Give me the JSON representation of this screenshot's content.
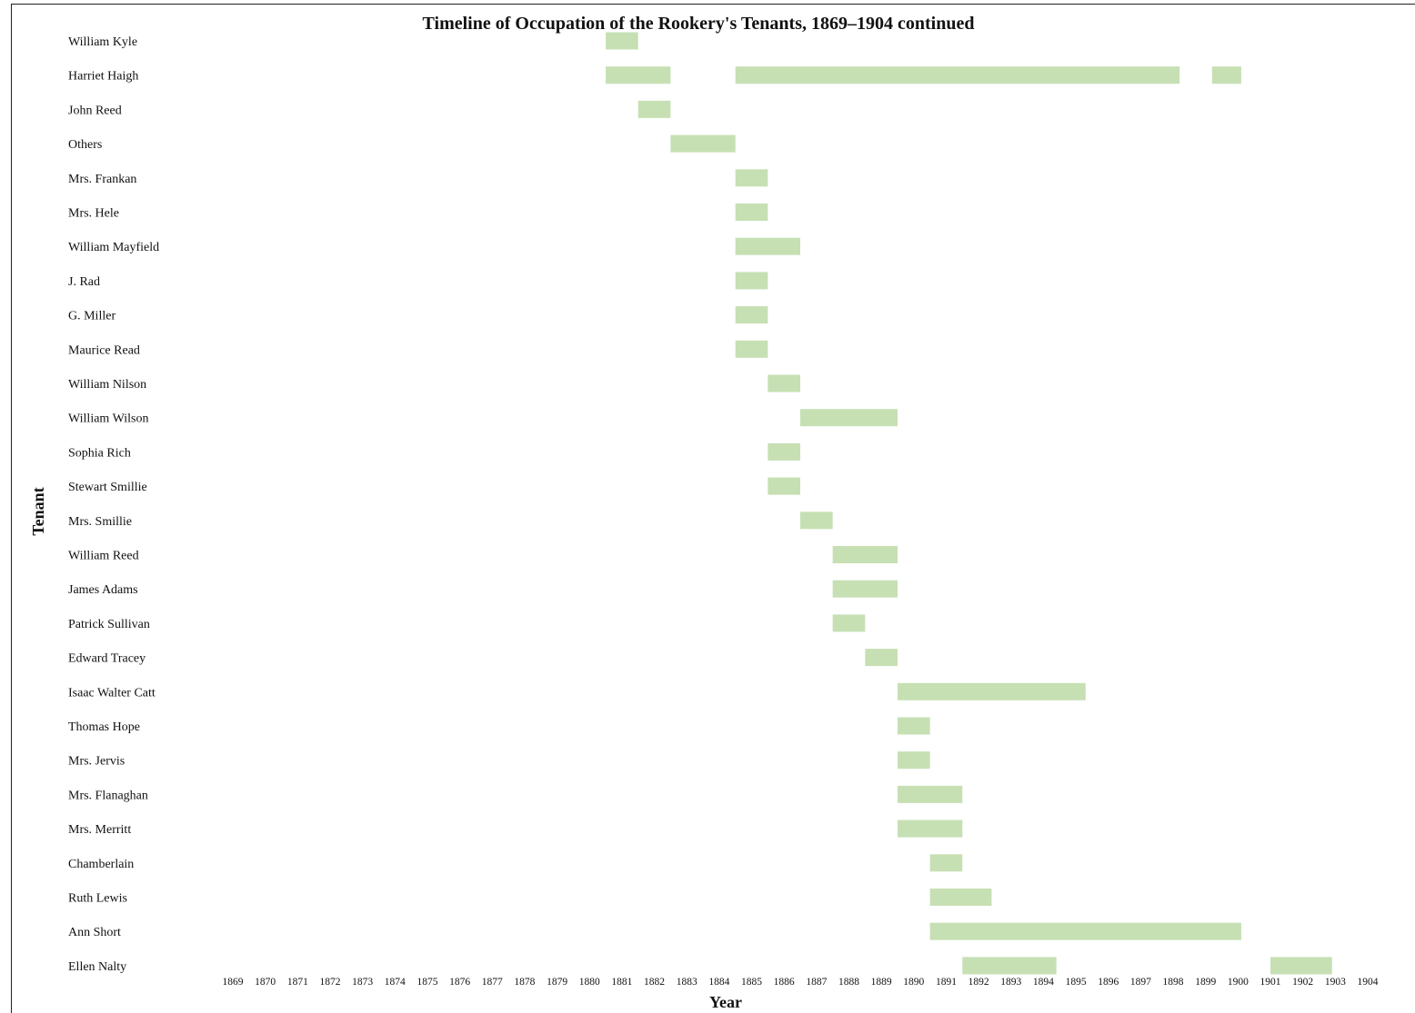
{
  "chart_data": {
    "type": "bar",
    "orientation": "horizontal-timeline",
    "title": "Timeline of Occupation of the Rookery's Tenants, 1869–1904 continued",
    "xlabel": "Year",
    "ylabel": "Tenant",
    "xlim": [
      1869,
      1904
    ],
    "x_ticks": [
      "1869",
      "1870",
      "1871",
      "1872",
      "1873",
      "1874",
      "1875",
      "1876",
      "1877",
      "1878",
      "1879",
      "1880",
      "1881",
      "1882",
      "1883",
      "1884",
      "1885",
      "1886",
      "1887",
      "1888",
      "1889",
      "1890",
      "1891",
      "1892",
      "1893",
      "1894",
      "1895",
      "1896",
      "1897",
      "1898",
      "1899",
      "1900",
      "1901",
      "1902",
      "1903",
      "1904"
    ],
    "grid": false,
    "bar_color": "#c6e0b4",
    "tenants": [
      {
        "name": "William Kyle",
        "periods": [
          [
            1880.5,
            1881.5
          ]
        ]
      },
      {
        "name": "Harriet Haigh",
        "periods": [
          [
            1880.5,
            1882.5
          ],
          [
            1884.5,
            1898.2
          ],
          [
            1899.2,
            1900.1
          ]
        ]
      },
      {
        "name": "John Reed",
        "periods": [
          [
            1881.5,
            1882.5
          ]
        ]
      },
      {
        "name": "Others",
        "periods": [
          [
            1882.5,
            1884.5
          ]
        ]
      },
      {
        "name": "Mrs. Frankan",
        "periods": [
          [
            1884.5,
            1885.5
          ]
        ]
      },
      {
        "name": "Mrs. Hele",
        "periods": [
          [
            1884.5,
            1885.5
          ]
        ]
      },
      {
        "name": "William Mayfield",
        "periods": [
          [
            1884.5,
            1886.5
          ]
        ]
      },
      {
        "name": "J. Rad",
        "periods": [
          [
            1884.5,
            1885.5
          ]
        ]
      },
      {
        "name": "G. Miller",
        "periods": [
          [
            1884.5,
            1885.5
          ]
        ]
      },
      {
        "name": "Maurice Read",
        "periods": [
          [
            1884.5,
            1885.5
          ]
        ]
      },
      {
        "name": "William Nilson",
        "periods": [
          [
            1885.5,
            1886.5
          ]
        ]
      },
      {
        "name": "William Wilson",
        "periods": [
          [
            1886.5,
            1889.5
          ]
        ]
      },
      {
        "name": "Sophia Rich",
        "periods": [
          [
            1885.5,
            1886.5
          ]
        ]
      },
      {
        "name": "Stewart Smillie",
        "periods": [
          [
            1885.5,
            1886.5
          ]
        ]
      },
      {
        "name": "Mrs. Smillie",
        "periods": [
          [
            1886.5,
            1887.5
          ]
        ]
      },
      {
        "name": "William Reed",
        "periods": [
          [
            1887.5,
            1889.5
          ]
        ]
      },
      {
        "name": "James Adams",
        "periods": [
          [
            1887.5,
            1889.5
          ]
        ]
      },
      {
        "name": "Patrick Sullivan",
        "periods": [
          [
            1887.5,
            1888.5
          ]
        ]
      },
      {
        "name": "Edward Tracey",
        "periods": [
          [
            1888.5,
            1889.5
          ]
        ]
      },
      {
        "name": "Isaac Walter Catt",
        "periods": [
          [
            1889.5,
            1895.3
          ]
        ]
      },
      {
        "name": "Thomas Hope",
        "periods": [
          [
            1889.5,
            1890.5
          ]
        ]
      },
      {
        "name": "Mrs. Jervis",
        "periods": [
          [
            1889.5,
            1890.5
          ]
        ]
      },
      {
        "name": "Mrs. Flanaghan",
        "periods": [
          [
            1889.5,
            1891.5
          ]
        ]
      },
      {
        "name": "Mrs. Merritt",
        "periods": [
          [
            1889.5,
            1891.5
          ]
        ]
      },
      {
        "name": "Chamberlain",
        "periods": [
          [
            1890.5,
            1891.5
          ]
        ]
      },
      {
        "name": "Ruth Lewis",
        "periods": [
          [
            1890.5,
            1892.4
          ]
        ]
      },
      {
        "name": "Ann Short",
        "periods": [
          [
            1890.5,
            1900.1
          ]
        ]
      },
      {
        "name": "Ellen Nalty",
        "periods": [
          [
            1891.5,
            1894.4
          ],
          [
            1901.0,
            1902.9
          ]
        ]
      }
    ]
  }
}
